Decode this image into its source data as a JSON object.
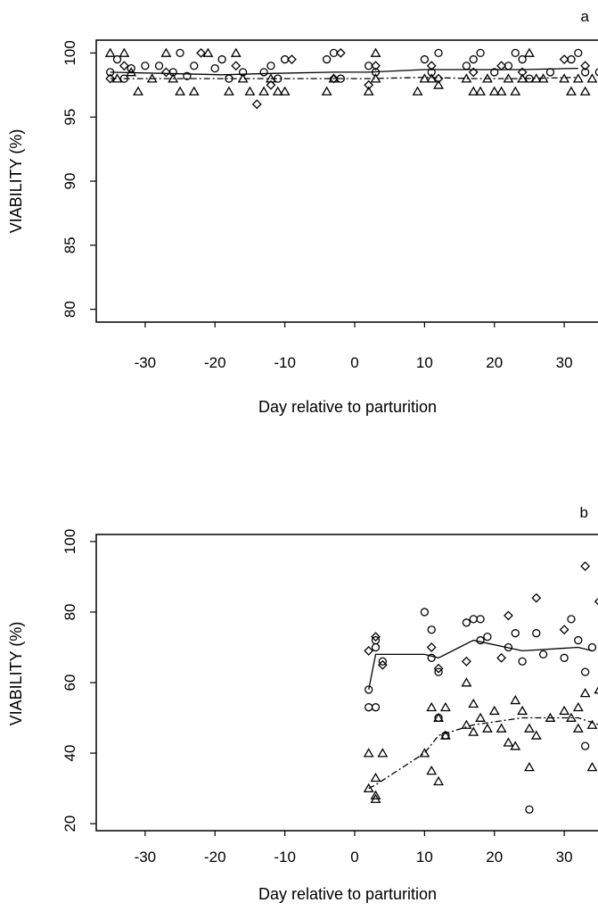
{
  "chart_data": [
    {
      "type": "scatter",
      "panel_label": "a",
      "xlabel": "Day relative to parturition",
      "ylabel": "VIABILITY (%)",
      "xlim": [
        -37,
        37
      ],
      "ylim": [
        79,
        101
      ],
      "xticks": [
        -30,
        -20,
        -10,
        0,
        10,
        20,
        30
      ],
      "yticks": [
        80,
        85,
        90,
        95,
        100
      ],
      "grid": false,
      "legend": "none",
      "series": [
        {
          "marker": "circle",
          "line": "solid",
          "points": [
            [
              -35,
              98.5
            ],
            [
              -34,
              99.5
            ],
            [
              -33,
              98
            ],
            [
              -32,
              98.8
            ],
            [
              -30,
              99
            ],
            [
              -28,
              99
            ],
            [
              -26,
              98.5
            ],
            [
              -25,
              100
            ],
            [
              -24,
              98.2
            ],
            [
              -23,
              99
            ],
            [
              -20,
              98.8
            ],
            [
              -19,
              99.5
            ],
            [
              -18,
              98
            ],
            [
              -16,
              98.5
            ],
            [
              -13,
              98.5
            ],
            [
              -12,
              99
            ],
            [
              -11,
              98
            ],
            [
              -10,
              99.5
            ],
            [
              -4,
              99.5
            ],
            [
              -3,
              100
            ],
            [
              -2,
              98
            ],
            [
              2,
              99
            ],
            [
              3,
              98.5
            ],
            [
              10,
              99.5
            ],
            [
              11,
              98.5
            ],
            [
              12,
              100
            ],
            [
              16,
              99
            ],
            [
              17,
              99.5
            ],
            [
              18,
              100
            ],
            [
              20,
              98.5
            ],
            [
              22,
              99
            ],
            [
              23,
              100
            ],
            [
              24,
              99.5
            ],
            [
              25,
              98
            ],
            [
              28,
              98.5
            ],
            [
              31,
              99.5
            ],
            [
              32,
              100
            ],
            [
              33,
              98.5
            ],
            [
              35,
              98.5
            ]
          ],
          "trend": [
            [
              -35,
              98.5
            ],
            [
              -27,
              98.4
            ],
            [
              -19,
              98.3
            ],
            [
              -12,
              98.4
            ],
            [
              -3,
              98.5
            ],
            [
              2,
              98.5
            ],
            [
              10,
              98.7
            ],
            [
              17,
              98.7
            ],
            [
              24,
              98.7
            ],
            [
              32,
              98.8
            ]
          ]
        },
        {
          "marker": "diamond",
          "line": "none",
          "points": [
            [
              -35,
              98
            ],
            [
              -33,
              99
            ],
            [
              -27,
              98.5
            ],
            [
              -22,
              100
            ],
            [
              -17,
              99
            ],
            [
              -14,
              96
            ],
            [
              -12,
              97.5
            ],
            [
              -9,
              99.5
            ],
            [
              -3,
              98
            ],
            [
              -2,
              100
            ],
            [
              2,
              97.5
            ],
            [
              3,
              99
            ],
            [
              11,
              99
            ],
            [
              12,
              98
            ],
            [
              17,
              98.5
            ],
            [
              21,
              99
            ],
            [
              24,
              98.5
            ],
            [
              30,
              99.5
            ],
            [
              33,
              99
            ]
          ]
        },
        {
          "marker": "triangle",
          "line": "dash-dot",
          "points": [
            [
              -35,
              100
            ],
            [
              -34,
              98
            ],
            [
              -33,
              100
            ],
            [
              -32,
              98.5
            ],
            [
              -31,
              97
            ],
            [
              -29,
              98
            ],
            [
              -27,
              100
            ],
            [
              -26,
              98
            ],
            [
              -25,
              97
            ],
            [
              -23,
              97
            ],
            [
              -21,
              100
            ],
            [
              -18,
              97
            ],
            [
              -17,
              100
            ],
            [
              -16,
              98
            ],
            [
              -15,
              97
            ],
            [
              -13,
              97
            ],
            [
              -12,
              98
            ],
            [
              -11,
              97
            ],
            [
              -10,
              97
            ],
            [
              -4,
              97
            ],
            [
              -3,
              98
            ],
            [
              2,
              97
            ],
            [
              3,
              100
            ],
            [
              3,
              98
            ],
            [
              9,
              97
            ],
            [
              10,
              98
            ],
            [
              11,
              98
            ],
            [
              12,
              97.5
            ],
            [
              16,
              98
            ],
            [
              17,
              97
            ],
            [
              18,
              97
            ],
            [
              19,
              98
            ],
            [
              20,
              97
            ],
            [
              21,
              97
            ],
            [
              22,
              98
            ],
            [
              23,
              97
            ],
            [
              24,
              98
            ],
            [
              25,
              100
            ],
            [
              26,
              98
            ],
            [
              27,
              98
            ],
            [
              30,
              98
            ],
            [
              31,
              97
            ],
            [
              32,
              98
            ],
            [
              33,
              97
            ],
            [
              34,
              98
            ],
            [
              36,
              100
            ]
          ],
          "trend": [
            [
              -35,
              98
            ],
            [
              -27,
              98
            ],
            [
              -19,
              98
            ],
            [
              -12,
              98
            ],
            [
              -3,
              98
            ],
            [
              2,
              98
            ],
            [
              10,
              98.1
            ],
            [
              17,
              98
            ],
            [
              24,
              98
            ],
            [
              32,
              98.1
            ]
          ]
        }
      ]
    },
    {
      "type": "scatter",
      "panel_label": "b",
      "xlabel": "Day relative to parturition",
      "ylabel": "VIABILITY (%)",
      "xlim": [
        -37,
        37
      ],
      "ylim": [
        18,
        102
      ],
      "xticks": [
        -30,
        -20,
        -10,
        0,
        10,
        20,
        30
      ],
      "yticks": [
        20,
        40,
        60,
        80,
        100
      ],
      "grid": false,
      "legend": "none",
      "series": [
        {
          "marker": "circle",
          "line": "solid",
          "points": [
            [
              2,
              58
            ],
            [
              2,
              53
            ],
            [
              3,
              53
            ],
            [
              3,
              70
            ],
            [
              3,
              72
            ],
            [
              4,
              66
            ],
            [
              10,
              80
            ],
            [
              11,
              75
            ],
            [
              11,
              67
            ],
            [
              12,
              63
            ],
            [
              12,
              50
            ],
            [
              13,
              45
            ],
            [
              16,
              77
            ],
            [
              17,
              78
            ],
            [
              18,
              78
            ],
            [
              18,
              72
            ],
            [
              19,
              73
            ],
            [
              22,
              70
            ],
            [
              23,
              74
            ],
            [
              24,
              66
            ],
            [
              25,
              24
            ],
            [
              26,
              74
            ],
            [
              27,
              68
            ],
            [
              30,
              67
            ],
            [
              31,
              78
            ],
            [
              32,
              72
            ],
            [
              33,
              42
            ],
            [
              33,
              63
            ],
            [
              34,
              70
            ]
          ],
          "trend": [
            [
              2,
              58
            ],
            [
              3,
              68
            ],
            [
              10,
              68
            ],
            [
              12,
              67
            ],
            [
              17,
              72
            ],
            [
              24,
              69
            ],
            [
              32,
              70
            ],
            [
              34,
              69
            ]
          ]
        },
        {
          "marker": "diamond",
          "line": "none",
          "points": [
            [
              2,
              69
            ],
            [
              3,
              73
            ],
            [
              4,
              65
            ],
            [
              11,
              70
            ],
            [
              12,
              64
            ],
            [
              16,
              66
            ],
            [
              21,
              67
            ],
            [
              22,
              79
            ],
            [
              26,
              84
            ],
            [
              30,
              75
            ],
            [
              33,
              93
            ],
            [
              35,
              83
            ]
          ]
        },
        {
          "marker": "triangle",
          "line": "dash-dot",
          "points": [
            [
              2,
              30
            ],
            [
              2,
              40
            ],
            [
              3,
              27
            ],
            [
              3,
              33
            ],
            [
              3,
              28
            ],
            [
              4,
              40
            ],
            [
              10,
              40
            ],
            [
              11,
              35
            ],
            [
              11,
              53
            ],
            [
              12,
              32
            ],
            [
              12,
              50
            ],
            [
              13,
              53
            ],
            [
              13,
              45
            ],
            [
              16,
              60
            ],
            [
              16,
              48
            ],
            [
              17,
              46
            ],
            [
              17,
              54
            ],
            [
              18,
              50
            ],
            [
              19,
              47
            ],
            [
              20,
              52
            ],
            [
              21,
              47
            ],
            [
              22,
              43
            ],
            [
              23,
              55
            ],
            [
              23,
              42
            ],
            [
              24,
              52
            ],
            [
              25,
              47
            ],
            [
              25,
              36
            ],
            [
              26,
              45
            ],
            [
              28,
              50
            ],
            [
              30,
              52
            ],
            [
              31,
              50
            ],
            [
              32,
              53
            ],
            [
              32,
              47
            ],
            [
              33,
              57
            ],
            [
              34,
              48
            ],
            [
              34,
              36
            ],
            [
              35,
              58
            ],
            [
              36,
              43
            ]
          ],
          "trend": [
            [
              2,
              30
            ],
            [
              3,
              31
            ],
            [
              10,
              40
            ],
            [
              12,
              45
            ],
            [
              17,
              48
            ],
            [
              24,
              50
            ],
            [
              32,
              50
            ],
            [
              35,
              48
            ]
          ]
        }
      ]
    }
  ]
}
